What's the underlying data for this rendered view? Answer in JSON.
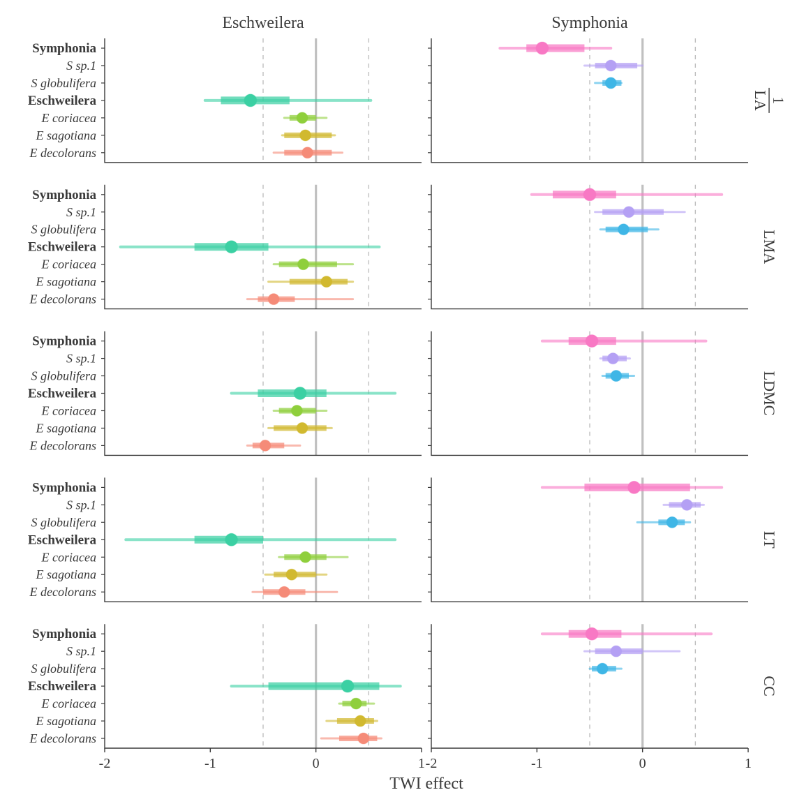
{
  "xlabel": "TWI effect",
  "xlabel_fontsize": 24,
  "xlim": [
    -2,
    1
  ],
  "xticks": [
    -2,
    -1,
    0,
    1
  ],
  "vlines_dashed": [
    -0.5,
    0.5
  ],
  "vline_solid": 0,
  "left_col_title": "Eschweilera",
  "right_col_title": "Symphonia",
  "col_title_fontsize": 24,
  "row_strip_fontsize": 22,
  "y_labels_regular_font": 18,
  "y_labels_bold_font": 19,
  "y_labels_italic": true,
  "axis_color": "#3a3a3a",
  "grid_dash_color": "#bfbfbf",
  "grid_solid_color": "#c0c0c0",
  "tick_font": 20,
  "point_radius_big": 9,
  "point_radius_small": 8,
  "panel_rows": [
    "1/LA",
    "LMA",
    "LDMC",
    "LT",
    "CC"
  ],
  "row_strip_raw": [
    "1/LA",
    "LMA",
    "LDMC",
    "LT",
    "CC"
  ],
  "y_order": [
    "Symphonia",
    "S sp.1",
    "S globulifera",
    "Eschweilera",
    "E coriacea",
    "E sagotiana",
    "E decolorans"
  ],
  "bold_rows": [
    "Symphonia",
    "Eschweilera"
  ],
  "italic_rows": [
    "S sp.1",
    "S globulifera",
    "E coriacea",
    "E sagotiana",
    "E decolorans"
  ],
  "colors": {
    "Symphonia": "#f878c4",
    "S sp.1": "#b4a0f4",
    "S globulifera": "#3fb6e6",
    "Eschweilera": "#3bd0a3",
    "E coriacea": "#8fcf3c",
    "E sagotiana": "#d1b92f",
    "E decolorans": "#f58b78"
  },
  "left_col_taxa": [
    "Eschweilera",
    "E coriacea",
    "E sagotiana",
    "E decolorans"
  ],
  "right_col_taxa": [
    "Symphonia",
    "S sp.1",
    "S globulifera"
  ],
  "data": {
    "1/LA": {
      "Eschweilera": {
        "pt": -0.62,
        "thick": [
          -0.9,
          -0.25
        ],
        "thin": [
          -1.05,
          0.52
        ]
      },
      "E coriacea": {
        "pt": -0.13,
        "thick": [
          -0.25,
          0.0
        ],
        "thin": [
          -0.3,
          0.1
        ]
      },
      "E sagotiana": {
        "pt": -0.1,
        "thick": [
          -0.3,
          0.15
        ],
        "thin": [
          -0.32,
          0.18
        ]
      },
      "E decolorans": {
        "pt": -0.08,
        "thick": [
          -0.3,
          0.15
        ],
        "thin": [
          -0.4,
          0.25
        ]
      },
      "Symphonia": {
        "pt": -0.95,
        "thick": [
          -1.1,
          -0.55
        ],
        "thin": [
          -1.35,
          -0.3
        ]
      },
      "S sp.1": {
        "pt": -0.3,
        "thick": [
          -0.45,
          -0.05
        ],
        "thin": [
          -0.55,
          0.0
        ]
      },
      "S globulifera": {
        "pt": -0.3,
        "thick": [
          -0.38,
          -0.2
        ],
        "thin": [
          -0.45,
          -0.2
        ]
      }
    },
    "LMA": {
      "Eschweilera": {
        "pt": -0.8,
        "thick": [
          -1.15,
          -0.45
        ],
        "thin": [
          -1.85,
          0.6
        ]
      },
      "E coriacea": {
        "pt": -0.12,
        "thick": [
          -0.35,
          0.2
        ],
        "thin": [
          -0.4,
          0.35
        ]
      },
      "E sagotiana": {
        "pt": 0.1,
        "thick": [
          -0.25,
          0.3
        ],
        "thin": [
          -0.45,
          0.35
        ]
      },
      "E decolorans": {
        "pt": -0.4,
        "thick": [
          -0.55,
          -0.2
        ],
        "thin": [
          -0.65,
          0.35
        ]
      },
      "Symphonia": {
        "pt": -0.5,
        "thick": [
          -0.85,
          -0.25
        ],
        "thin": [
          -1.05,
          0.75
        ]
      },
      "S sp.1": {
        "pt": -0.13,
        "thick": [
          -0.38,
          0.2
        ],
        "thin": [
          -0.45,
          0.4
        ]
      },
      "S globulifera": {
        "pt": -0.18,
        "thick": [
          -0.35,
          0.05
        ],
        "thin": [
          -0.4,
          0.15
        ]
      }
    },
    "LDMC": {
      "Eschweilera": {
        "pt": -0.15,
        "thick": [
          -0.55,
          0.1
        ],
        "thin": [
          -0.8,
          0.75
        ]
      },
      "E coriacea": {
        "pt": -0.18,
        "thick": [
          -0.35,
          0.0
        ],
        "thin": [
          -0.4,
          0.1
        ]
      },
      "E sagotiana": {
        "pt": -0.13,
        "thick": [
          -0.4,
          0.1
        ],
        "thin": [
          -0.45,
          0.15
        ]
      },
      "E decolorans": {
        "pt": -0.48,
        "thick": [
          -0.6,
          -0.3
        ],
        "thin": [
          -0.65,
          -0.15
        ]
      },
      "Symphonia": {
        "pt": -0.48,
        "thick": [
          -0.7,
          -0.25
        ],
        "thin": [
          -0.95,
          0.6
        ]
      },
      "S sp.1": {
        "pt": -0.28,
        "thick": [
          -0.38,
          -0.15
        ],
        "thin": [
          -0.4,
          -0.12
        ]
      },
      "S globulifera": {
        "pt": -0.25,
        "thick": [
          -0.35,
          -0.13
        ],
        "thin": [
          -0.38,
          -0.08
        ]
      }
    },
    "LT": {
      "Eschweilera": {
        "pt": -0.8,
        "thick": [
          -1.15,
          -0.5
        ],
        "thin": [
          -1.8,
          0.75
        ]
      },
      "E coriacea": {
        "pt": -0.1,
        "thick": [
          -0.3,
          0.1
        ],
        "thin": [
          -0.35,
          0.3
        ]
      },
      "E sagotiana": {
        "pt": -0.23,
        "thick": [
          -0.4,
          0.0
        ],
        "thin": [
          -0.48,
          0.1
        ]
      },
      "E decolorans": {
        "pt": -0.3,
        "thick": [
          -0.5,
          -0.1
        ],
        "thin": [
          -0.6,
          0.2
        ]
      },
      "Symphonia": {
        "pt": -0.08,
        "thick": [
          -0.55,
          0.45
        ],
        "thin": [
          -0.95,
          0.75
        ]
      },
      "S sp.1": {
        "pt": 0.42,
        "thick": [
          0.25,
          0.55
        ],
        "thin": [
          0.2,
          0.58
        ]
      },
      "S globulifera": {
        "pt": 0.28,
        "thick": [
          0.15,
          0.4
        ],
        "thin": [
          -0.05,
          0.45
        ]
      }
    },
    "CC": {
      "Eschweilera": {
        "pt": 0.3,
        "thick": [
          -0.45,
          0.6
        ],
        "thin": [
          -0.8,
          0.8
        ]
      },
      "E coriacea": {
        "pt": 0.38,
        "thick": [
          0.25,
          0.48
        ],
        "thin": [
          0.22,
          0.55
        ]
      },
      "E sagotiana": {
        "pt": 0.42,
        "thick": [
          0.2,
          0.55
        ],
        "thin": [
          0.1,
          0.58
        ]
      },
      "E decolorans": {
        "pt": 0.45,
        "thick": [
          0.22,
          0.58
        ],
        "thin": [
          0.05,
          0.62
        ]
      },
      "Symphonia": {
        "pt": -0.48,
        "thick": [
          -0.7,
          -0.2
        ],
        "thin": [
          -0.95,
          0.65
        ]
      },
      "S sp.1": {
        "pt": -0.25,
        "thick": [
          -0.45,
          0.0
        ],
        "thin": [
          -0.55,
          0.35
        ]
      },
      "S globulifera": {
        "pt": -0.38,
        "thick": [
          -0.48,
          -0.25
        ],
        "thin": [
          -0.5,
          -0.2
        ]
      }
    }
  }
}
